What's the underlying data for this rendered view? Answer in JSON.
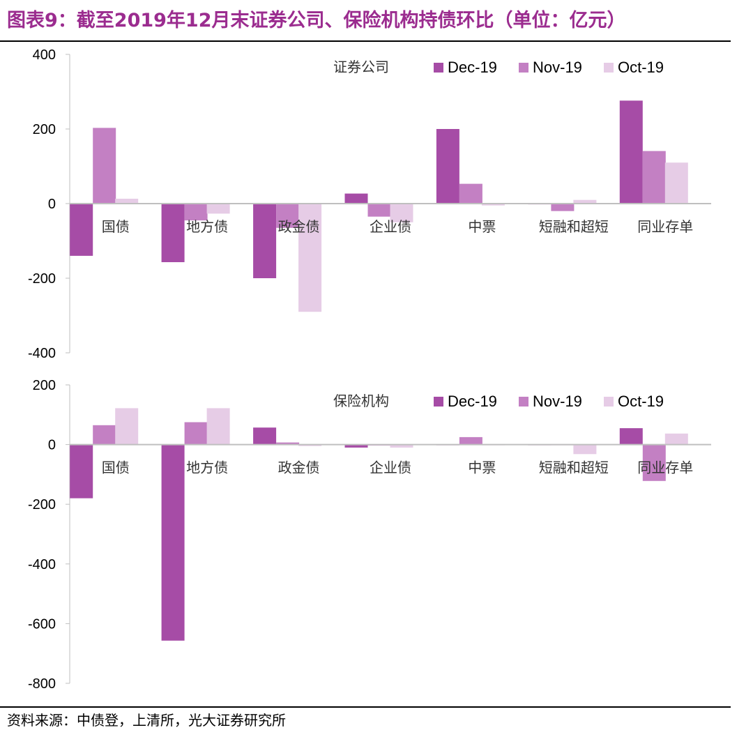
{
  "title": "图表9：截至2019年12月末证券公司、保险机构持债环比（单位：亿元）",
  "source": "资料来源：中债登，上清所，光大证券研究所",
  "colors": {
    "Dec-19": "#a64ca6",
    "Nov-19": "#c380c3",
    "Oct-19": "#e6cce6",
    "title": "#9b2c8f"
  },
  "chart_data": [
    {
      "type": "bar",
      "panel_label": "证券公司",
      "categories": [
        "国债",
        "地方债",
        "政金债",
        "企业债",
        "中票",
        "短融和超短",
        "同业存单"
      ],
      "series": [
        {
          "name": "Dec-19",
          "values": [
            -140,
            -157,
            -200,
            27,
            200,
            -2,
            276
          ]
        },
        {
          "name": "Nov-19",
          "values": [
            203,
            -45,
            -65,
            -35,
            53,
            -20,
            141
          ]
        },
        {
          "name": "Oct-19",
          "values": [
            13,
            -27,
            -290,
            -50,
            -5,
            10,
            110
          ]
        }
      ],
      "ylim": [
        -400,
        400
      ],
      "yticks": [
        "400",
        "200",
        "0",
        "-200",
        "-400"
      ],
      "legend": "top-right"
    },
    {
      "type": "bar",
      "panel_label": "保险机构",
      "categories": [
        "国债",
        "地方债",
        "政金债",
        "企业债",
        "中票",
        "短融和超短",
        "同业存单"
      ],
      "series": [
        {
          "name": "Dec-19",
          "values": [
            -180,
            -657,
            57,
            -10,
            -2,
            -2,
            55
          ]
        },
        {
          "name": "Nov-19",
          "values": [
            65,
            75,
            7,
            -3,
            25,
            0,
            -122
          ]
        },
        {
          "name": "Oct-19",
          "values": [
            122,
            122,
            -5,
            -10,
            -2,
            -32,
            37
          ]
        }
      ],
      "ylim": [
        -800,
        200
      ],
      "yticks": [
        "200",
        "0",
        "-200",
        "-400",
        "-600",
        "-800"
      ],
      "legend": "top-right"
    }
  ]
}
